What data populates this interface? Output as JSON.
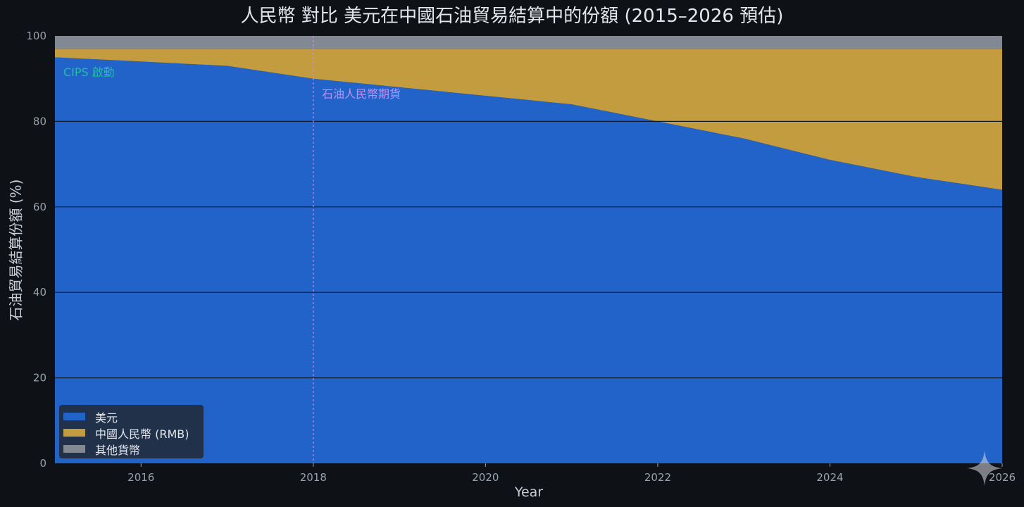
{
  "chart_data": {
    "type": "area",
    "stacked": true,
    "title": "人民幣 對比 美元在中國石油貿易結算中的份額 (2015–2026 預估)",
    "xlabel": "Year",
    "ylabel": "石油貿易結算份額 (%)",
    "xlim": [
      2015,
      2026
    ],
    "ylim": [
      0,
      100
    ],
    "x_ticks": [
      "2016",
      "2018",
      "2020",
      "2022",
      "2024",
      "2026"
    ],
    "y_ticks": [
      "0",
      "20",
      "40",
      "60",
      "80",
      "100"
    ],
    "grid": "horizontal",
    "x": [
      2015,
      2016,
      2017,
      2018,
      2019,
      2020,
      2021,
      2022,
      2023,
      2024,
      2025,
      2026
    ],
    "series": [
      {
        "name": "美元",
        "color": "#2263c9",
        "values": [
          95,
          94,
          93,
          90,
          88,
          86,
          84,
          80,
          76,
          71,
          67,
          64
        ]
      },
      {
        "name": "中國人民幣 (RMB)",
        "color": "#c49c40",
        "values": [
          2,
          3,
          4,
          7,
          9,
          11,
          13,
          17,
          21,
          26,
          30,
          33
        ]
      },
      {
        "name": "其他貨幣",
        "color": "#828993",
        "values": [
          3,
          3,
          3,
          3,
          3,
          3,
          3,
          3,
          3,
          3,
          3,
          3
        ]
      }
    ],
    "legend_position": "bottom-left",
    "annotations": [
      {
        "text": "CIPS 啟動",
        "x": 2015,
        "color": "#1fc0a0"
      },
      {
        "text": "石油人民幣期貨",
        "x": 2018,
        "color": "#c58ef0",
        "vline": true
      }
    ]
  }
}
